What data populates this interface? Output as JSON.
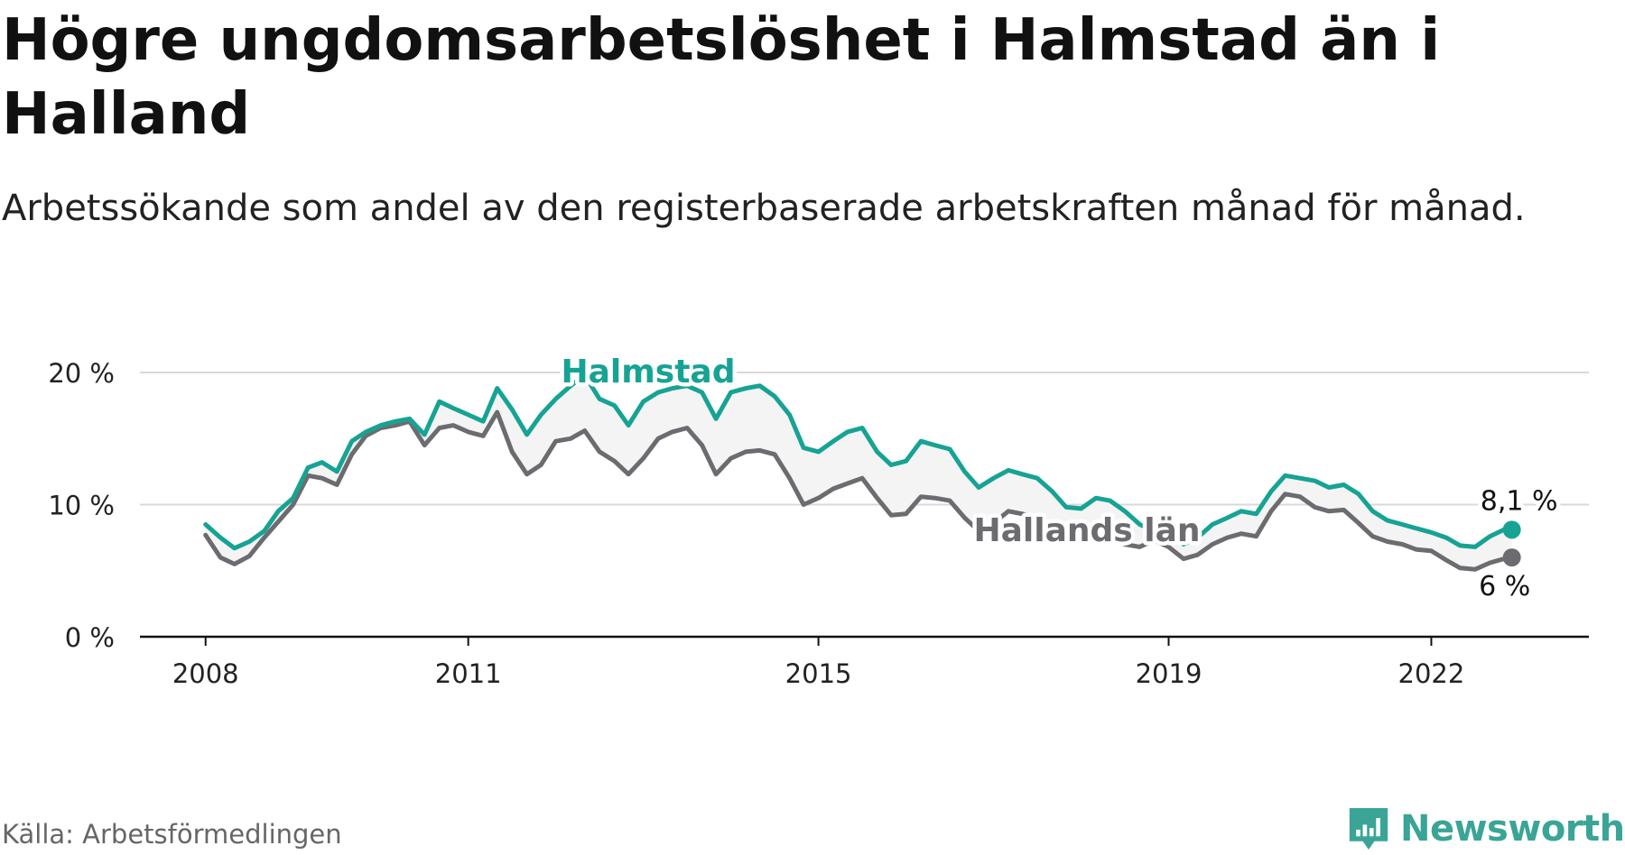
{
  "title": "Högre ungdomsarbetslöshet i Halmstad än i Halland",
  "subtitle": "Arbetssökande som andel av den registerbaserade arbetskraften månad för månad.",
  "source": "Källa: Arbetsförmedlingen",
  "brand": "Newsworthy",
  "colors": {
    "halmstad": "#16a394",
    "halland": "#6c6c70",
    "brand": "#3aa596"
  },
  "chart_data": {
    "type": "line",
    "title": "Högre ungdomsarbetslöshet i Halmstad än i Halland",
    "xlabel": "",
    "ylabel": "",
    "ylim": [
      0,
      20
    ],
    "xlim": [
      2007.25,
      2023.8
    ],
    "grid": true,
    "yticks": [
      {
        "value": 0,
        "label": "0 %"
      },
      {
        "value": 10,
        "label": "10 %"
      },
      {
        "value": 20,
        "label": "20 %"
      }
    ],
    "xticks": [
      {
        "value": 2008,
        "label": "2008"
      },
      {
        "value": 2011,
        "label": "2011"
      },
      {
        "value": 2015,
        "label": "2015"
      },
      {
        "value": 2019,
        "label": "2019"
      },
      {
        "value": 2022,
        "label": "2022"
      }
    ],
    "series": [
      {
        "name": "Halmstad",
        "label": "Halmstad",
        "end_label": "8,1 %",
        "points": [
          [
            2008.0,
            8.5
          ],
          [
            2008.17,
            7.5
          ],
          [
            2008.33,
            6.7
          ],
          [
            2008.5,
            7.2
          ],
          [
            2008.67,
            8.0
          ],
          [
            2008.83,
            9.5
          ],
          [
            2009.0,
            10.5
          ],
          [
            2009.17,
            12.8
          ],
          [
            2009.33,
            13.2
          ],
          [
            2009.5,
            12.5
          ],
          [
            2009.67,
            14.8
          ],
          [
            2009.83,
            15.5
          ],
          [
            2010.0,
            16.0
          ],
          [
            2010.17,
            16.3
          ],
          [
            2010.33,
            16.5
          ],
          [
            2010.5,
            15.3
          ],
          [
            2010.67,
            17.8
          ],
          [
            2010.83,
            17.3
          ],
          [
            2011.0,
            16.8
          ],
          [
            2011.17,
            16.3
          ],
          [
            2011.33,
            18.8
          ],
          [
            2011.5,
            17.2
          ],
          [
            2011.67,
            15.3
          ],
          [
            2011.83,
            16.8
          ],
          [
            2012.0,
            18.0
          ],
          [
            2012.17,
            19.0
          ],
          [
            2012.33,
            19.8
          ],
          [
            2012.5,
            18.0
          ],
          [
            2012.67,
            17.5
          ],
          [
            2012.83,
            16.0
          ],
          [
            2013.0,
            17.8
          ],
          [
            2013.17,
            18.5
          ],
          [
            2013.33,
            18.8
          ],
          [
            2013.5,
            19.0
          ],
          [
            2013.67,
            18.5
          ],
          [
            2013.83,
            16.5
          ],
          [
            2014.0,
            18.5
          ],
          [
            2014.17,
            18.8
          ],
          [
            2014.33,
            19.0
          ],
          [
            2014.5,
            18.2
          ],
          [
            2014.67,
            16.8
          ],
          [
            2014.83,
            14.3
          ],
          [
            2015.0,
            14.0
          ],
          [
            2015.17,
            14.8
          ],
          [
            2015.33,
            15.5
          ],
          [
            2015.5,
            15.8
          ],
          [
            2015.67,
            14.0
          ],
          [
            2015.83,
            13.0
          ],
          [
            2016.0,
            13.3
          ],
          [
            2016.17,
            14.8
          ],
          [
            2016.33,
            14.5
          ],
          [
            2016.5,
            14.2
          ],
          [
            2016.67,
            12.5
          ],
          [
            2016.83,
            11.3
          ],
          [
            2017.0,
            12.0
          ],
          [
            2017.17,
            12.6
          ],
          [
            2017.33,
            12.3
          ],
          [
            2017.5,
            12.0
          ],
          [
            2017.67,
            11.0
          ],
          [
            2017.83,
            9.8
          ],
          [
            2018.0,
            9.7
          ],
          [
            2018.17,
            10.5
          ],
          [
            2018.33,
            10.3
          ],
          [
            2018.5,
            9.5
          ],
          [
            2018.67,
            8.5
          ],
          [
            2018.83,
            8.0
          ],
          [
            2019.0,
            7.8
          ],
          [
            2019.17,
            7.0
          ],
          [
            2019.33,
            7.5
          ],
          [
            2019.5,
            8.5
          ],
          [
            2019.67,
            9.0
          ],
          [
            2019.83,
            9.5
          ],
          [
            2020.0,
            9.3
          ],
          [
            2020.17,
            11.0
          ],
          [
            2020.33,
            12.2
          ],
          [
            2020.5,
            12.0
          ],
          [
            2020.67,
            11.8
          ],
          [
            2020.83,
            11.3
          ],
          [
            2021.0,
            11.5
          ],
          [
            2021.17,
            10.8
          ],
          [
            2021.33,
            9.5
          ],
          [
            2021.5,
            8.8
          ],
          [
            2021.67,
            8.5
          ],
          [
            2021.83,
            8.2
          ],
          [
            2022.0,
            7.9
          ],
          [
            2022.17,
            7.5
          ],
          [
            2022.33,
            6.9
          ],
          [
            2022.5,
            6.8
          ],
          [
            2022.67,
            7.6
          ],
          [
            2022.83,
            8.1
          ],
          [
            2022.92,
            8.1
          ]
        ]
      },
      {
        "name": "Hallands län",
        "label": "Hallands län",
        "end_label": "6 %",
        "points": [
          [
            2008.0,
            7.7
          ],
          [
            2008.17,
            6.0
          ],
          [
            2008.33,
            5.5
          ],
          [
            2008.5,
            6.1
          ],
          [
            2008.67,
            7.5
          ],
          [
            2008.83,
            8.7
          ],
          [
            2009.0,
            10.0
          ],
          [
            2009.17,
            12.2
          ],
          [
            2009.33,
            12.0
          ],
          [
            2009.5,
            11.5
          ],
          [
            2009.67,
            13.8
          ],
          [
            2009.83,
            15.2
          ],
          [
            2010.0,
            15.8
          ],
          [
            2010.17,
            16.0
          ],
          [
            2010.33,
            16.3
          ],
          [
            2010.5,
            14.5
          ],
          [
            2010.67,
            15.8
          ],
          [
            2010.83,
            16.0
          ],
          [
            2011.0,
            15.5
          ],
          [
            2011.17,
            15.2
          ],
          [
            2011.33,
            17.0
          ],
          [
            2011.5,
            14.0
          ],
          [
            2011.67,
            12.3
          ],
          [
            2011.83,
            13.0
          ],
          [
            2012.0,
            14.8
          ],
          [
            2012.17,
            15.0
          ],
          [
            2012.33,
            15.6
          ],
          [
            2012.5,
            14.0
          ],
          [
            2012.67,
            13.3
          ],
          [
            2012.83,
            12.3
          ],
          [
            2013.0,
            13.5
          ],
          [
            2013.17,
            15.0
          ],
          [
            2013.33,
            15.5
          ],
          [
            2013.5,
            15.8
          ],
          [
            2013.67,
            14.5
          ],
          [
            2013.83,
            12.3
          ],
          [
            2014.0,
            13.5
          ],
          [
            2014.17,
            14.0
          ],
          [
            2014.33,
            14.1
          ],
          [
            2014.5,
            13.8
          ],
          [
            2014.67,
            12.0
          ],
          [
            2014.83,
            10.0
          ],
          [
            2015.0,
            10.5
          ],
          [
            2015.17,
            11.2
          ],
          [
            2015.33,
            11.6
          ],
          [
            2015.5,
            12.0
          ],
          [
            2015.67,
            10.5
          ],
          [
            2015.83,
            9.2
          ],
          [
            2016.0,
            9.3
          ],
          [
            2016.17,
            10.6
          ],
          [
            2016.33,
            10.5
          ],
          [
            2016.5,
            10.3
          ],
          [
            2016.67,
            9.0
          ],
          [
            2016.83,
            8.0
          ],
          [
            2017.0,
            8.6
          ],
          [
            2017.17,
            9.5
          ],
          [
            2017.33,
            9.3
          ],
          [
            2017.5,
            9.0
          ],
          [
            2017.67,
            8.3
          ],
          [
            2017.83,
            7.5
          ],
          [
            2018.0,
            7.3
          ],
          [
            2018.17,
            7.7
          ],
          [
            2018.33,
            7.5
          ],
          [
            2018.5,
            7.0
          ],
          [
            2018.67,
            6.8
          ],
          [
            2018.83,
            7.3
          ],
          [
            2019.0,
            6.8
          ],
          [
            2019.17,
            5.9
          ],
          [
            2019.33,
            6.2
          ],
          [
            2019.5,
            7.0
          ],
          [
            2019.67,
            7.5
          ],
          [
            2019.83,
            7.8
          ],
          [
            2020.0,
            7.6
          ],
          [
            2020.17,
            9.5
          ],
          [
            2020.33,
            10.8
          ],
          [
            2020.5,
            10.6
          ],
          [
            2020.67,
            9.8
          ],
          [
            2020.83,
            9.5
          ],
          [
            2021.0,
            9.6
          ],
          [
            2021.17,
            8.6
          ],
          [
            2021.33,
            7.6
          ],
          [
            2021.5,
            7.2
          ],
          [
            2021.67,
            7.0
          ],
          [
            2021.83,
            6.6
          ],
          [
            2022.0,
            6.5
          ],
          [
            2022.17,
            5.8
          ],
          [
            2022.33,
            5.2
          ],
          [
            2022.5,
            5.1
          ],
          [
            2022.67,
            5.6
          ],
          [
            2022.83,
            5.9
          ],
          [
            2022.92,
            6.0
          ]
        ]
      }
    ]
  }
}
